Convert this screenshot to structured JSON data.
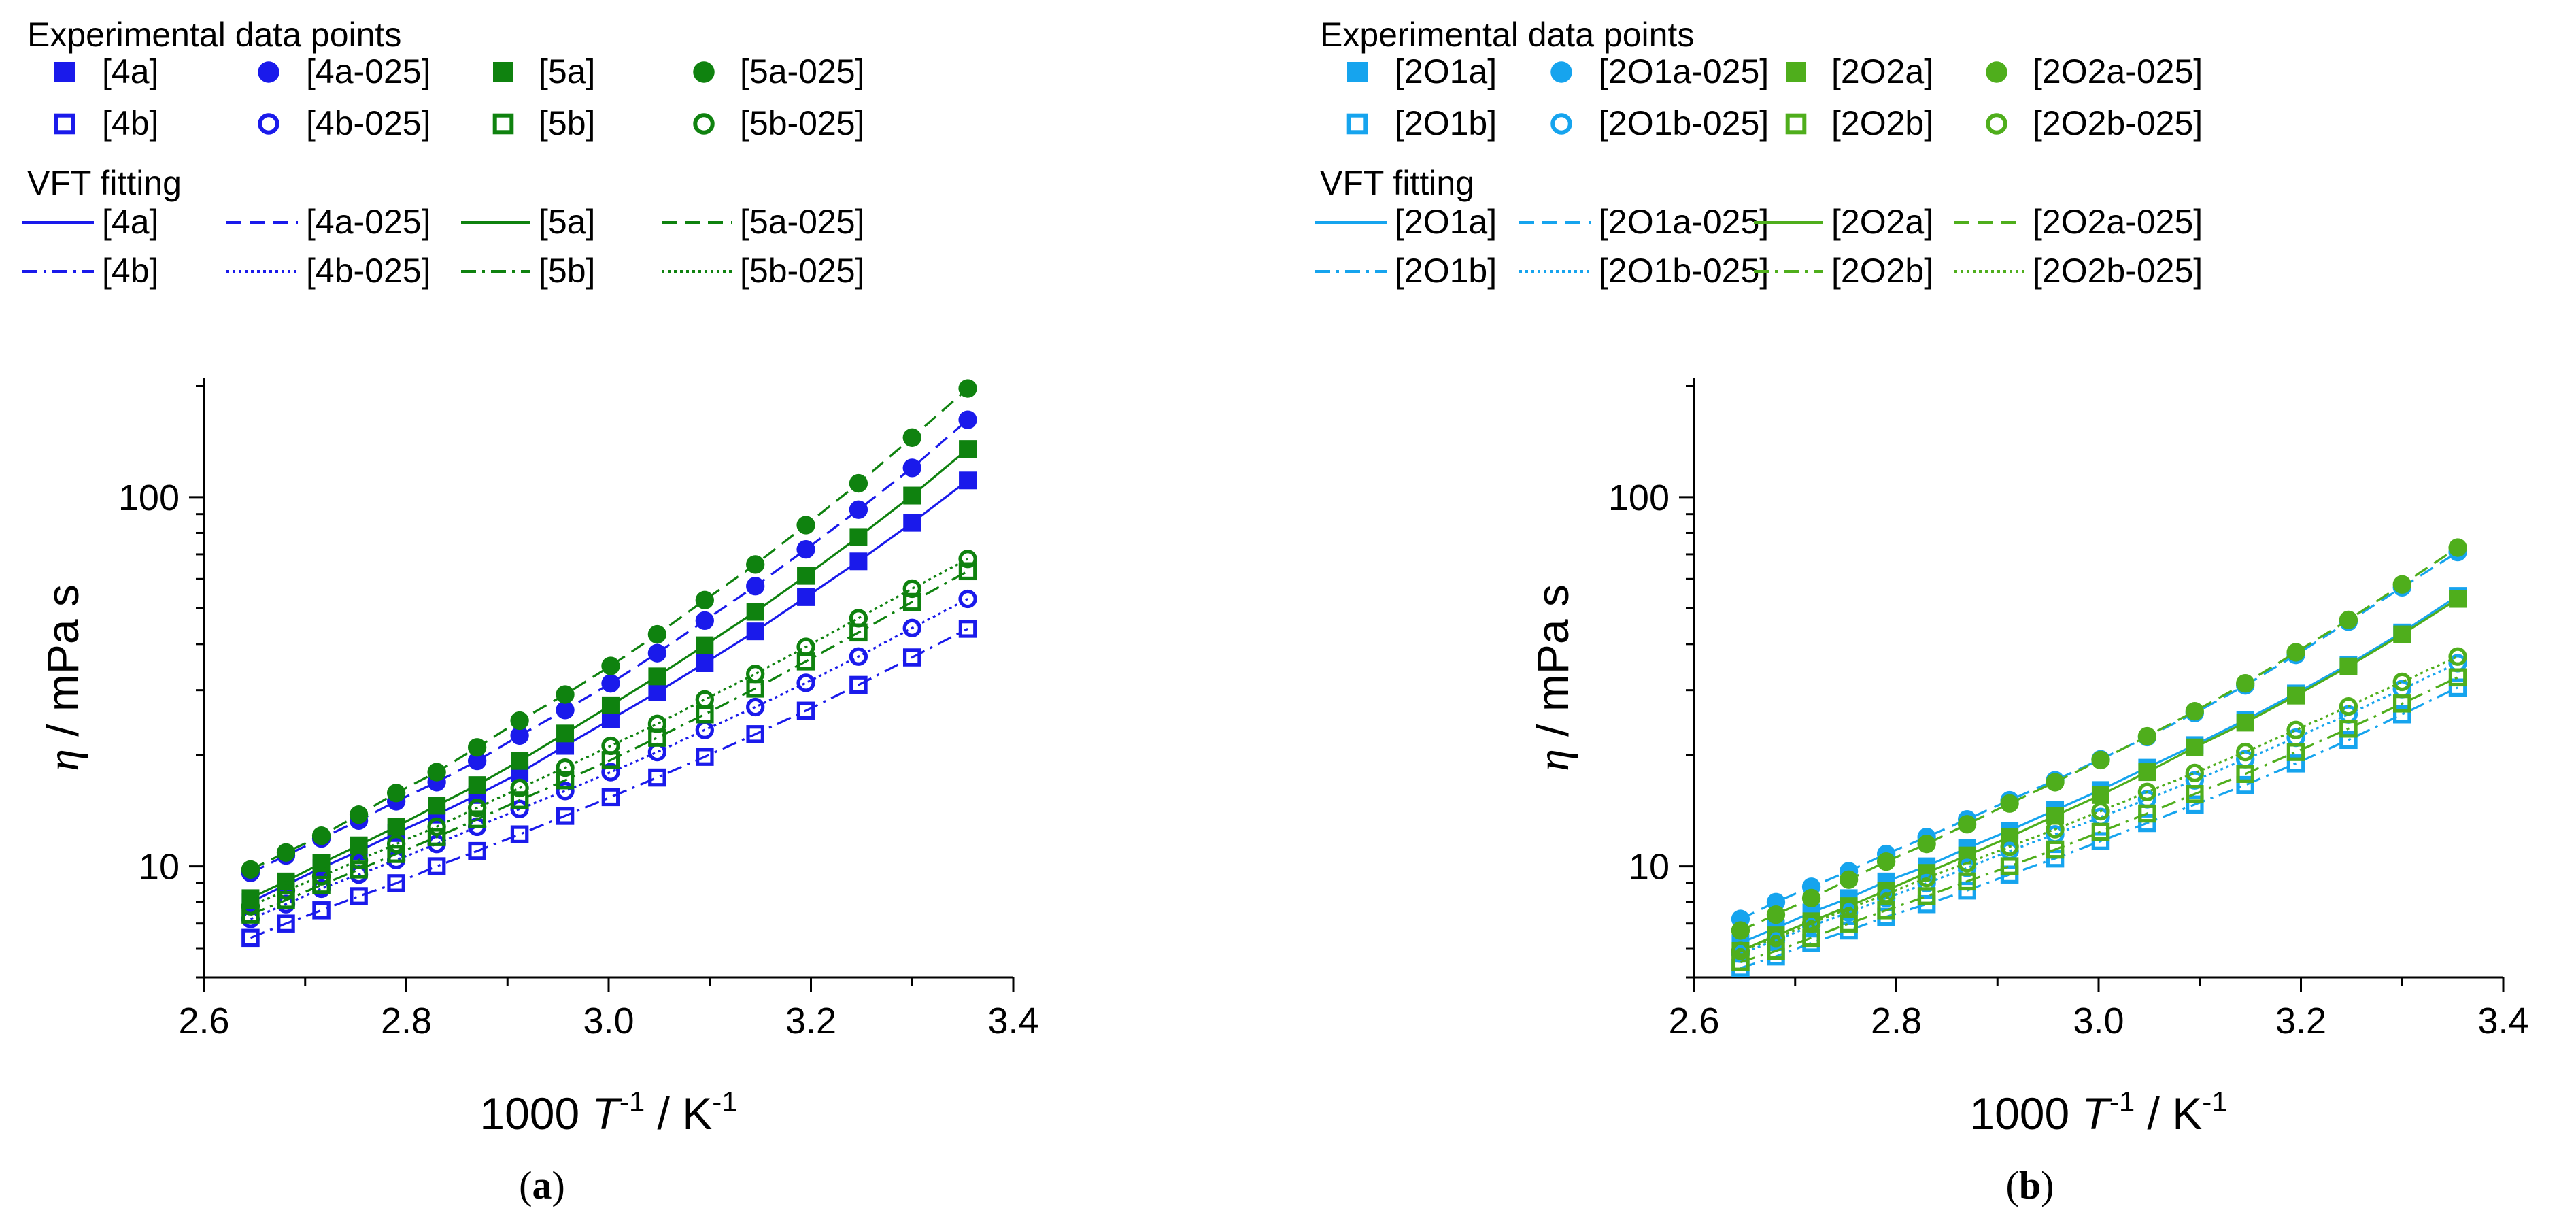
{
  "figure_labels": [
    {
      "open": "(",
      "letter": "a",
      "close": ")"
    },
    {
      "open": "(",
      "letter": "b",
      "close": ")"
    }
  ],
  "chart_data": [
    {
      "type": "scatter",
      "id": "a",
      "title": "",
      "xlabel": {
        "prefix": "1000 ",
        "var": "T",
        "varsup": "-1",
        "mid": " / K",
        "unitsup": "-1"
      },
      "ylabel": {
        "var": "η",
        "rest": " / mPa s"
      },
      "xlim": [
        2.6,
        3.4
      ],
      "ylim": [
        5,
        210
      ],
      "yscale": "log",
      "xticks": [
        "2.6",
        "2.8",
        "3.0",
        "3.2",
        "3.4"
      ],
      "yticks": [
        "10",
        "100"
      ],
      "legend_placement": "top",
      "legend_points_title": "Experimental data points",
      "legend_fit_title": "VFT fitting",
      "x": [
        2.646,
        2.681,
        2.716,
        2.753,
        2.79,
        2.83,
        2.87,
        2.912,
        2.957,
        3.002,
        3.048,
        3.095,
        3.145,
        3.195,
        3.247,
        3.3,
        3.355
      ],
      "series": [
        {
          "name": "[4a]",
          "color": "#1a1aeb",
          "marker": "square-filled",
          "line": "solid",
          "values": [
            8.0,
            8.9,
            9.9,
            11.0,
            12.3,
            13.8,
            15.6,
            17.9,
            21.2,
            25.0,
            29.6,
            35.5,
            43.3,
            53.6,
            67.0,
            85.2,
            111.0
          ]
        },
        {
          "name": "[4a-025]",
          "color": "#1a1aeb",
          "marker": "circle-filled",
          "line": "dashed",
          "values": [
            9.6,
            10.7,
            11.9,
            13.3,
            15.0,
            16.9,
            19.3,
            22.6,
            26.5,
            31.3,
            37.8,
            46.3,
            57.4,
            72.2,
            92.5,
            120.0,
            162.0
          ]
        },
        {
          "name": "[5a]",
          "color": "#0f820f",
          "marker": "square-filled",
          "line": "solid",
          "values": [
            8.2,
            9.1,
            10.2,
            11.4,
            12.8,
            14.6,
            16.6,
            19.3,
            22.9,
            27.3,
            32.7,
            39.7,
            48.9,
            61.2,
            78.0,
            101.0,
            135.0
          ]
        },
        {
          "name": "[5a-025]",
          "color": "#0f820f",
          "marker": "circle-filled",
          "line": "dashed",
          "values": [
            9.8,
            10.9,
            12.1,
            13.8,
            15.8,
            18.0,
            21.0,
            24.8,
            29.2,
            34.9,
            42.5,
            52.6,
            65.7,
            84.0,
            109.0,
            145.0,
            197.0
          ]
        },
        {
          "name": "[4b]",
          "color": "#1a1aeb",
          "marker": "square-open",
          "line": "dashdot",
          "values": [
            6.4,
            7.0,
            7.6,
            8.3,
            9.0,
            10.0,
            11.0,
            12.2,
            13.7,
            15.4,
            17.4,
            19.8,
            22.8,
            26.4,
            31.0,
            36.8,
            44.0
          ]
        },
        {
          "name": "[4b-025]",
          "color": "#1a1aeb",
          "marker": "circle-open",
          "line": "dotted",
          "values": [
            7.2,
            7.9,
            8.7,
            9.5,
            10.4,
            11.5,
            12.8,
            14.3,
            16.0,
            18.0,
            20.4,
            23.4,
            27.0,
            31.4,
            37.0,
            44.2,
            53.0
          ]
        },
        {
          "name": "[5b]",
          "color": "#0f820f",
          "marker": "square-open",
          "line": "dashdot",
          "values": [
            7.4,
            8.1,
            8.9,
            9.8,
            10.8,
            12.0,
            13.4,
            15.1,
            17.1,
            19.4,
            22.3,
            25.8,
            30.3,
            35.9,
            43.0,
            52.0,
            63.0
          ]
        },
        {
          "name": "[5b-025]",
          "color": "#0f820f",
          "marker": "circle-open",
          "line": "dotted",
          "values": [
            7.8,
            8.6,
            9.4,
            10.4,
            11.5,
            12.8,
            14.4,
            16.3,
            18.5,
            21.2,
            24.3,
            28.3,
            33.2,
            39.3,
            47.0,
            56.5,
            68.0
          ]
        }
      ]
    },
    {
      "type": "scatter",
      "id": "b",
      "title": "",
      "xlabel": {
        "prefix": "1000 ",
        "var": "T",
        "varsup": "-1",
        "mid": " / K",
        "unitsup": "-1"
      },
      "ylabel": {
        "var": "η",
        "rest": " / mPa s"
      },
      "xlim": [
        2.6,
        3.4
      ],
      "ylim": [
        5,
        210
      ],
      "yscale": "log",
      "xticks": [
        "2.6",
        "2.8",
        "3.0",
        "3.2",
        "3.4"
      ],
      "yticks": [
        "10",
        "100"
      ],
      "legend_placement": "top",
      "legend_points_title": "Experimental data points",
      "legend_fit_title": "VFT fitting",
      "x": [
        2.646,
        2.681,
        2.716,
        2.753,
        2.79,
        2.83,
        2.87,
        2.912,
        2.957,
        3.002,
        3.048,
        3.095,
        3.145,
        3.195,
        3.247,
        3.3,
        3.355
      ],
      "series": [
        {
          "name": "[2O1a]",
          "color": "#16a4ee",
          "marker": "square-filled",
          "line": "solid",
          "values": [
            6.2,
            6.8,
            7.5,
            8.2,
            9.1,
            10.0,
            11.2,
            12.5,
            14.2,
            16.1,
            18.5,
            21.3,
            24.9,
            29.4,
            35.2,
            43.0,
            54.0
          ]
        },
        {
          "name": "[2O1a-025]",
          "color": "#16a4ee",
          "marker": "circle-filled",
          "line": "dashed",
          "values": [
            7.2,
            8.0,
            8.8,
            9.7,
            10.8,
            12.0,
            13.4,
            15.1,
            17.1,
            19.5,
            22.4,
            26.0,
            30.9,
            37.4,
            46.0,
            57.0,
            71.0
          ]
        },
        {
          "name": "[2O2a]",
          "color": "#4fae1c",
          "marker": "square-filled",
          "line": "solid",
          "values": [
            5.9,
            6.5,
            7.1,
            7.8,
            8.6,
            9.6,
            10.7,
            12.0,
            13.7,
            15.6,
            18.0,
            21.0,
            24.5,
            29.0,
            34.8,
            42.5,
            53.0
          ]
        },
        {
          "name": "[2O2a-025]",
          "color": "#4fae1c",
          "marker": "circle-filled",
          "line": "dashed",
          "values": [
            6.7,
            7.4,
            8.2,
            9.2,
            10.3,
            11.5,
            13.0,
            14.8,
            16.9,
            19.4,
            22.5,
            26.3,
            31.3,
            38.0,
            46.5,
            58.0,
            73.0
          ]
        },
        {
          "name": "[2O1b]",
          "color": "#16a4ee",
          "marker": "square-open",
          "line": "dashdot",
          "values": [
            5.3,
            5.7,
            6.2,
            6.7,
            7.3,
            7.9,
            8.6,
            9.5,
            10.5,
            11.7,
            13.1,
            14.7,
            16.6,
            19.0,
            22.0,
            25.8,
            30.5
          ]
        },
        {
          "name": "[2O1b-025]",
          "color": "#16a4ee",
          "marker": "circle-open",
          "line": "dotted",
          "values": [
            5.8,
            6.3,
            6.9,
            7.5,
            8.2,
            9.0,
            9.9,
            11.0,
            12.2,
            13.6,
            15.2,
            17.1,
            19.5,
            22.3,
            25.8,
            30.2,
            35.5
          ]
        },
        {
          "name": "[2O2b]",
          "color": "#4fae1c",
          "marker": "square-open",
          "line": "dashdot",
          "values": [
            5.5,
            5.9,
            6.4,
            7.0,
            7.6,
            8.3,
            9.1,
            10.0,
            11.1,
            12.4,
            13.9,
            15.7,
            17.8,
            20.4,
            23.6,
            27.6,
            32.5
          ]
        },
        {
          "name": "[2O2b-025]",
          "color": "#4fae1c",
          "marker": "circle-open",
          "line": "dotted",
          "values": [
            5.9,
            6.4,
            7.0,
            7.7,
            8.4,
            9.3,
            10.2,
            11.3,
            12.6,
            14.1,
            15.9,
            17.9,
            20.4,
            23.4,
            27.1,
            31.6,
            37.0
          ]
        }
      ]
    }
  ]
}
